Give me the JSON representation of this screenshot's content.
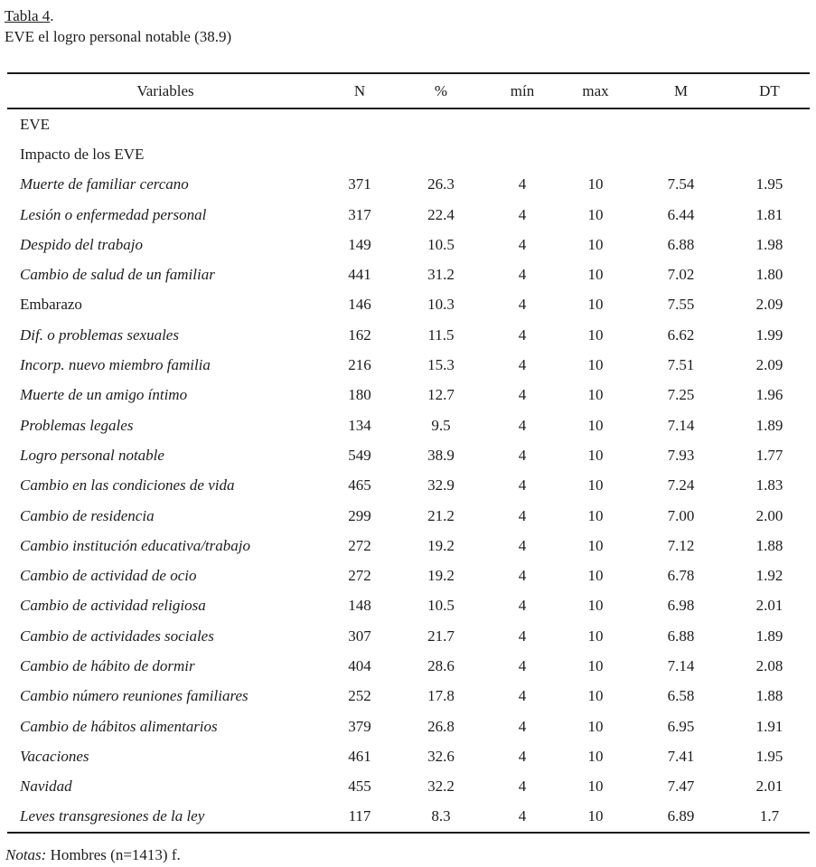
{
  "page": {
    "caption_label": "Tabla 4",
    "caption_punct": ".",
    "caption_title": "EVE el logro personal notable (38.9)"
  },
  "table": {
    "columns": [
      "Variables",
      "N",
      "%",
      "mín",
      "max",
      "M",
      "DT"
    ],
    "rows": [
      {
        "label": "EVE",
        "section": true,
        "n": "",
        "pct": "",
        "min": "",
        "max": "",
        "m": "",
        "dt": ""
      },
      {
        "label": "Impacto de los EVE",
        "section": true,
        "n": "",
        "pct": "",
        "min": "",
        "max": "",
        "m": "",
        "dt": ""
      },
      {
        "label": "Muerte de familiar cercano",
        "n": "371",
        "pct": "26.3",
        "min": "4",
        "max": "10",
        "m": "7.54",
        "dt": "1.95"
      },
      {
        "label": "Lesión o enfermedad personal",
        "n": "317",
        "pct": "22.4",
        "min": "4",
        "max": "10",
        "m": "6.44",
        "dt": "1.81"
      },
      {
        "label": "Despido del trabajo",
        "n": "149",
        "pct": "10.5",
        "min": "4",
        "max": "10",
        "m": "6.88",
        "dt": "1.98"
      },
      {
        "label": "Cambio de salud de un familiar",
        "n": "441",
        "pct": "31.2",
        "min": "4",
        "max": "10",
        "m": "7.02",
        "dt": "1.80"
      },
      {
        "label": "Embarazo",
        "upright": true,
        "n": "146",
        "pct": "10.3",
        "min": "4",
        "max": "10",
        "m": "7.55",
        "dt": "2.09"
      },
      {
        "label": "Dif. o problemas sexuales",
        "n": "162",
        "pct": "11.5",
        "min": "4",
        "max": "10",
        "m": "6.62",
        "dt": "1.99"
      },
      {
        "label": "Incorp. nuevo miembro familia",
        "n": "216",
        "pct": "15.3",
        "min": "4",
        "max": "10",
        "m": "7.51",
        "dt": "2.09"
      },
      {
        "label": "Muerte de un amigo íntimo",
        "n": "180",
        "pct": "12.7",
        "min": "4",
        "max": "10",
        "m": "7.25",
        "dt": "1.96"
      },
      {
        "label": "Problemas legales",
        "n": "134",
        "pct": "9.5",
        "min": "4",
        "max": "10",
        "m": "7.14",
        "dt": "1.89"
      },
      {
        "label": "Logro personal notable",
        "n": "549",
        "pct": "38.9",
        "min": "4",
        "max": "10",
        "m": "7.93",
        "dt": "1.77"
      },
      {
        "label": "Cambio en las condiciones de vida",
        "n": "465",
        "pct": "32.9",
        "min": "4",
        "max": "10",
        "m": "7.24",
        "dt": "1.83"
      },
      {
        "label": "Cambio de residencia",
        "n": "299",
        "pct": "21.2",
        "min": "4",
        "max": "10",
        "m": "7.00",
        "dt": "2.00"
      },
      {
        "label": "Cambio institución educativa/trabajo",
        "n": "272",
        "pct": "19.2",
        "min": "4",
        "max": "10",
        "m": "7.12",
        "dt": "1.88"
      },
      {
        "label": "Cambio de actividad de ocio",
        "n": "272",
        "pct": "19.2",
        "min": "4",
        "max": "10",
        "m": "6.78",
        "dt": "1.92"
      },
      {
        "label": "Cambio de actividad religiosa",
        "n": "148",
        "pct": "10.5",
        "min": "4",
        "max": "10",
        "m": "6.98",
        "dt": "2.01"
      },
      {
        "label": "Cambio de actividades sociales",
        "n": "307",
        "pct": "21.7",
        "min": "4",
        "max": "10",
        "m": "6.88",
        "dt": "1.89"
      },
      {
        "label": "Cambio de hábito de dormir",
        "n": "404",
        "pct": "28.6",
        "min": "4",
        "max": "10",
        "m": "7.14",
        "dt": "2.08"
      },
      {
        "label": "Cambio número reuniones familiares",
        "n": "252",
        "pct": "17.8",
        "min": "4",
        "max": "10",
        "m": "6.58",
        "dt": "1.88"
      },
      {
        "label": "Cambio de hábitos alimentarios",
        "n": "379",
        "pct": "26.8",
        "min": "4",
        "max": "10",
        "m": "6.95",
        "dt": "1.91"
      },
      {
        "label": "Vacaciones",
        "n": "461",
        "pct": "32.6",
        "min": "4",
        "max": "10",
        "m": "7.41",
        "dt": "1.95"
      },
      {
        "label": "Navidad",
        "n": "455",
        "pct": "32.2",
        "min": "4",
        "max": "10",
        "m": "7.47",
        "dt": "2.01"
      },
      {
        "label": "Leves transgresiones de la ley",
        "n": "117",
        "pct": "8.3",
        "min": "4",
        "max": "10",
        "m": "6.89",
        "dt": "1.7"
      }
    ]
  },
  "notes": {
    "label": "Notas:",
    "text": "Hombres (n=1413) f."
  }
}
